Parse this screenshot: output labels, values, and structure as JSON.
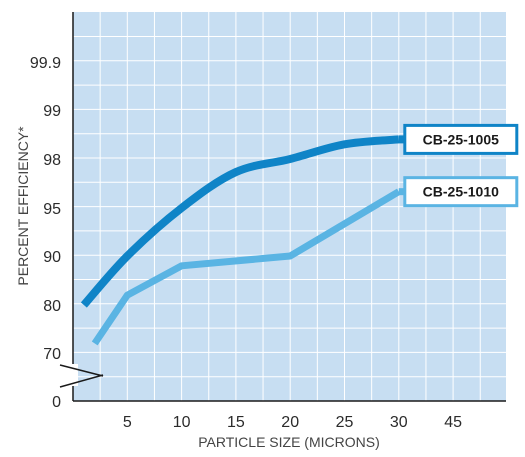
{
  "chart_data": {
    "type": "line",
    "xlabel": "PARTICLE SIZE (MICRONS)",
    "ylabel": "PERCENT EFFICIENCY*",
    "x_ticks": [
      "5",
      "10",
      "15",
      "20",
      "25",
      "30",
      "45"
    ],
    "y_ticks": [
      "0",
      "70",
      "80",
      "90",
      "95",
      "98",
      "99",
      "99.9"
    ],
    "axis_break": "y-axis between 0 and 70",
    "grid": true,
    "colors": {
      "plot_background": "#c7def2",
      "grid": "#ffffff",
      "axis": "#1a1a1a",
      "series_dark": "#0f84c7",
      "series_light": "#5ab4e3"
    },
    "series": [
      {
        "name": "CB-25-1005",
        "color": "#0f84c7",
        "x": [
          1,
          5,
          10,
          15,
          20,
          25,
          30
        ],
        "y": [
          80,
          90,
          95,
          97.2,
          98,
          98.3,
          98.4
        ]
      },
      {
        "name": "CB-25-1010",
        "color": "#5ab4e3",
        "x": [
          2,
          5,
          10,
          20,
          30
        ],
        "y": [
          72,
          82,
          88,
          90,
          96
        ]
      }
    ]
  }
}
